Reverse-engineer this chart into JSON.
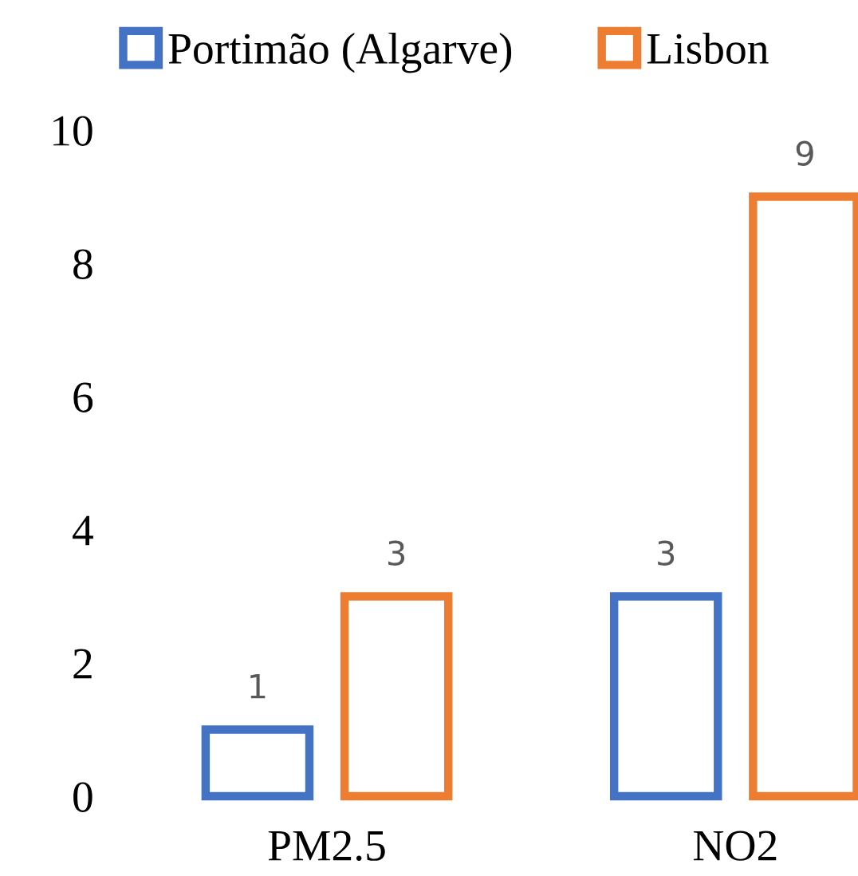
{
  "chart_data": {
    "type": "bar",
    "categories": [
      "PM2.5",
      "NO2"
    ],
    "series": [
      {
        "name": "Portimão (Algarve)",
        "color": "#4472c4",
        "values": [
          1,
          3
        ]
      },
      {
        "name": "Lisbon",
        "color": "#ed7d31",
        "values": [
          3,
          9
        ]
      }
    ],
    "ylim": [
      0,
      10
    ],
    "yticks": [
      0,
      2,
      4,
      6,
      8,
      10
    ],
    "data_labels": true,
    "legend": "top",
    "grid": false
  }
}
